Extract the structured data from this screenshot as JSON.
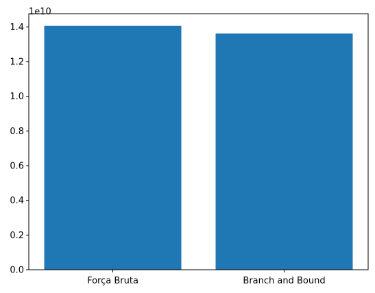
{
  "chart_data": {
    "type": "bar",
    "categories": [
      "Força Bruta",
      "Branch and Bound"
    ],
    "values": [
      14060000000,
      13620000000
    ],
    "offset_label": "1e10",
    "ylim": [
      0,
      14760000000
    ],
    "yticks": [
      0,
      2000000000,
      4000000000,
      6000000000,
      8000000000,
      10000000000,
      12000000000,
      14000000000
    ],
    "ytick_labels": [
      "0.0",
      "0.2",
      "0.4",
      "0.6",
      "0.8",
      "1.0",
      "1.2",
      "1.4"
    ],
    "bar_color": "#1f77b4",
    "grid": false,
    "title": "",
    "xlabel": "",
    "ylabel": ""
  }
}
